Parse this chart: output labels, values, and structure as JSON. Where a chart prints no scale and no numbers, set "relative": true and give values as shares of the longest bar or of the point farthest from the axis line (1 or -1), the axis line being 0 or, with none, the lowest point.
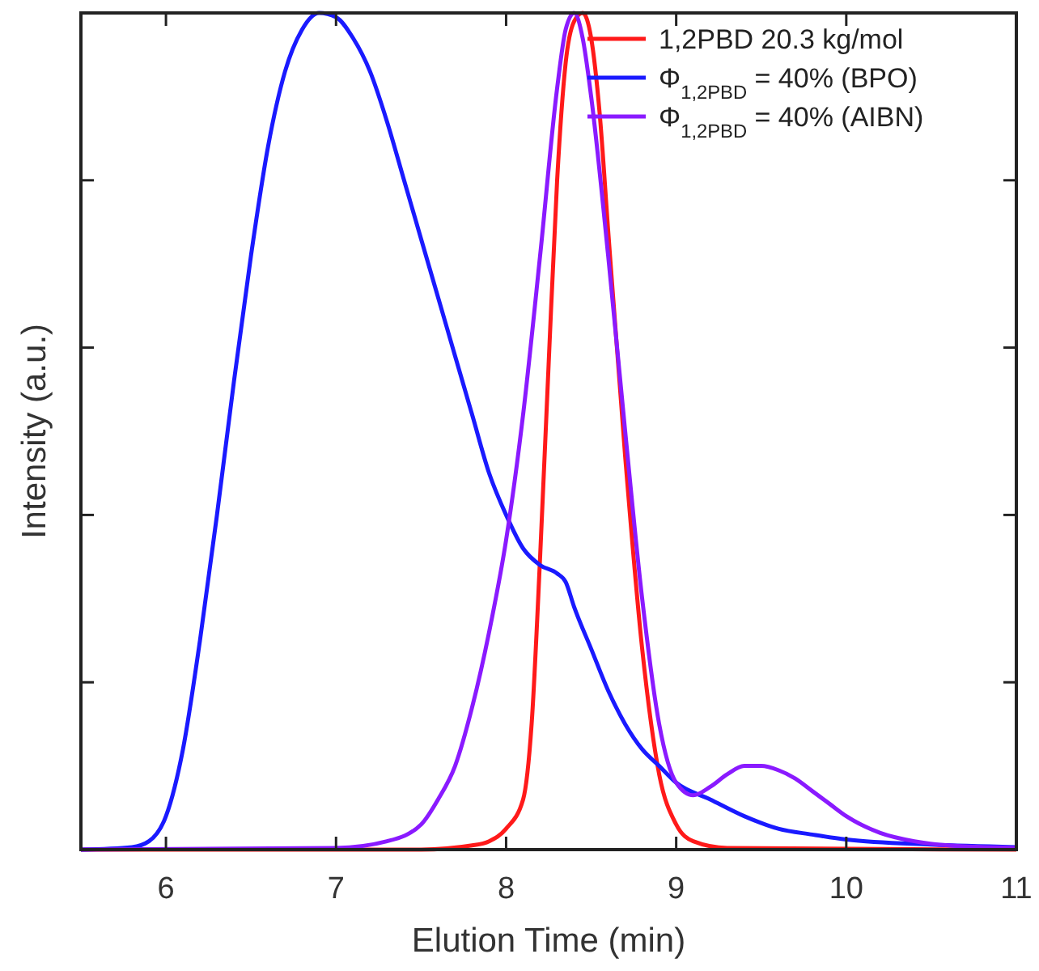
{
  "chart_data": {
    "type": "line",
    "relative": true,
    "xlabel": "Elution Time (min)",
    "ylabel": "Intensity (a.u.)",
    "xlim": [
      5.5,
      11
    ],
    "xticks": [
      6,
      7,
      8,
      9,
      10,
      11
    ],
    "legend": "top right",
    "grid": false,
    "marker": "none",
    "line_style": "solid",
    "series": [
      {
        "name": "1,2PBD 20.3 kg/mol",
        "color": "#ff1a1a",
        "x": [
          5.5,
          7.5,
          7.8,
          7.9,
          8.0,
          8.1,
          8.15,
          8.2,
          8.25,
          8.3,
          8.35,
          8.4,
          8.45,
          8.5,
          8.55,
          8.6,
          8.7,
          8.8,
          8.9,
          9.0,
          9.1,
          9.3,
          11
        ],
        "values": [
          0,
          0,
          0.005,
          0.01,
          0.025,
          0.06,
          0.15,
          0.35,
          0.58,
          0.8,
          0.94,
          0.99,
          1.0,
          0.97,
          0.88,
          0.74,
          0.47,
          0.24,
          0.09,
          0.03,
          0.01,
          0.002,
          0
        ]
      },
      {
        "name": "Φ$_{1,2PBD}$ = 40% (BPO)",
        "color": "#1a1aff",
        "x": [
          5.5,
          5.8,
          5.9,
          6.0,
          6.1,
          6.2,
          6.3,
          6.4,
          6.5,
          6.6,
          6.7,
          6.8,
          6.9,
          7.0,
          7.1,
          7.2,
          7.3,
          7.4,
          7.5,
          7.6,
          7.7,
          7.8,
          7.9,
          8.0,
          8.1,
          8.2,
          8.3,
          8.35,
          8.4,
          8.5,
          8.6,
          8.7,
          8.8,
          8.9,
          9.0,
          9.2,
          9.4,
          9.6,
          9.8,
          10.0,
          10.5,
          11
        ],
        "values": [
          0,
          0.003,
          0.01,
          0.04,
          0.12,
          0.25,
          0.4,
          0.56,
          0.71,
          0.84,
          0.93,
          0.98,
          1.0,
          0.995,
          0.97,
          0.93,
          0.87,
          0.8,
          0.73,
          0.66,
          0.59,
          0.52,
          0.45,
          0.4,
          0.36,
          0.34,
          0.33,
          0.32,
          0.29,
          0.24,
          0.19,
          0.15,
          0.12,
          0.1,
          0.08,
          0.06,
          0.04,
          0.025,
          0.018,
          0.012,
          0.006,
          0.003
        ]
      },
      {
        "name": "Φ$_{1,2PBD}$ = 40% (AIBN)",
        "color": "#8a1aff",
        "x": [
          5.5,
          7.0,
          7.3,
          7.5,
          7.6,
          7.7,
          7.8,
          7.9,
          8.0,
          8.1,
          8.2,
          8.3,
          8.35,
          8.4,
          8.45,
          8.5,
          8.6,
          8.7,
          8.8,
          8.9,
          9.0,
          9.1,
          9.2,
          9.3,
          9.4,
          9.5,
          9.6,
          9.7,
          9.8,
          9.9,
          10.0,
          10.2,
          10.4,
          10.6,
          11
        ],
        "values": [
          0,
          0.002,
          0.01,
          0.03,
          0.06,
          0.1,
          0.17,
          0.26,
          0.37,
          0.52,
          0.71,
          0.91,
          0.98,
          1.0,
          0.97,
          0.9,
          0.71,
          0.5,
          0.3,
          0.15,
          0.08,
          0.065,
          0.075,
          0.09,
          0.1,
          0.1,
          0.095,
          0.085,
          0.07,
          0.055,
          0.04,
          0.02,
          0.01,
          0.005,
          0.002
        ]
      }
    ]
  }
}
